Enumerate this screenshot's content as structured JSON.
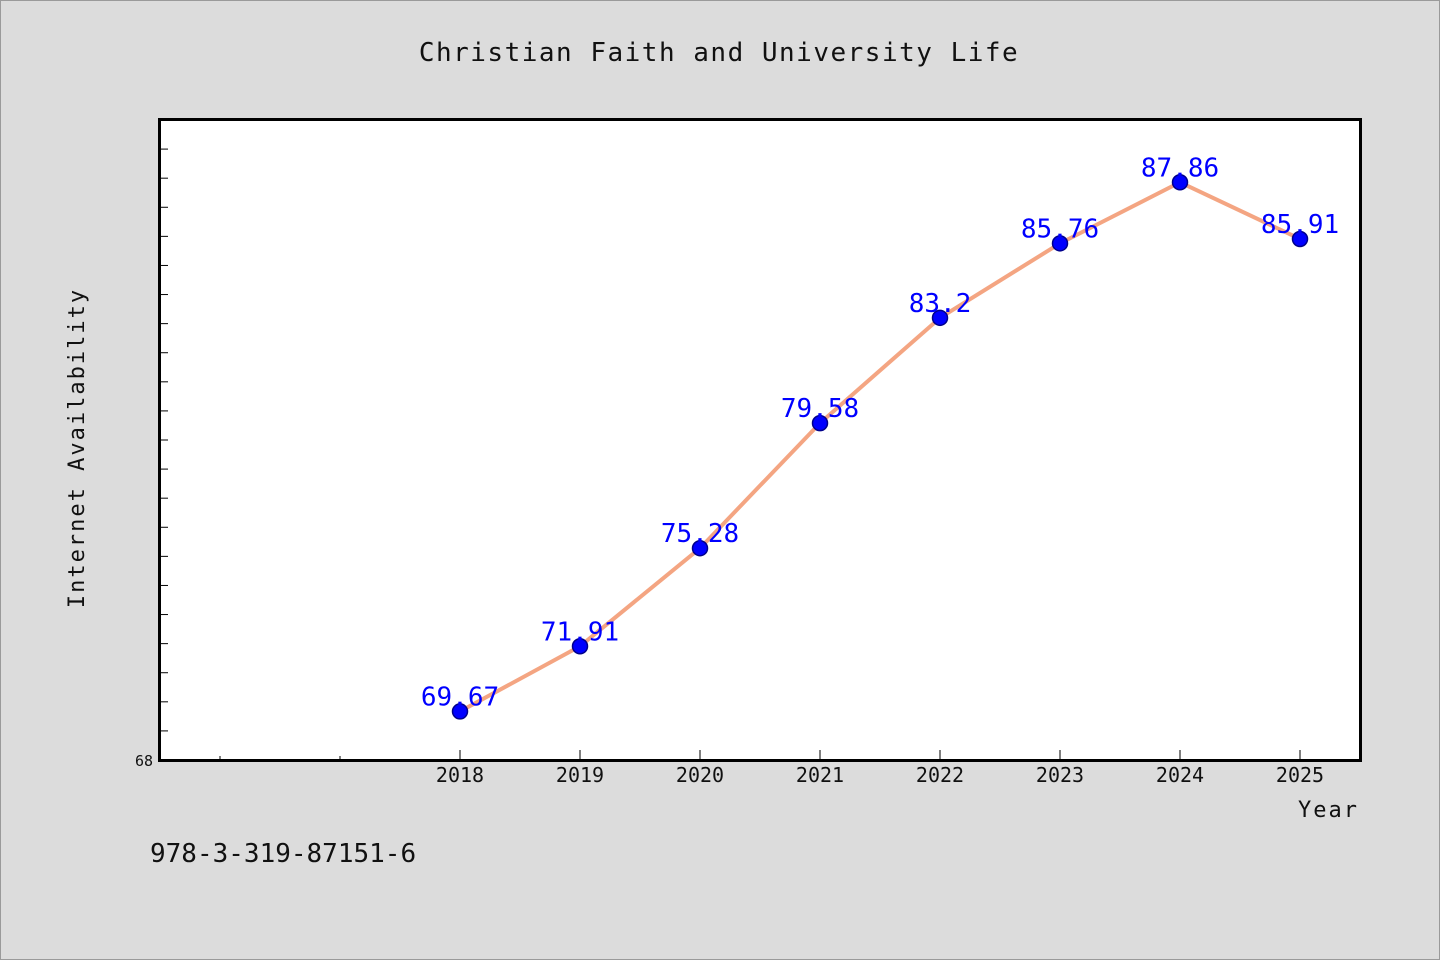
{
  "chart_data": {
    "type": "line",
    "title": "Christian Faith and University Life",
    "xlabel": "Year",
    "ylabel": "Internet Availability",
    "categories": [
      "2018",
      "2019",
      "2020",
      "2021",
      "2022",
      "2023",
      "2024",
      "2025"
    ],
    "values": [
      69.67,
      71.91,
      75.28,
      79.58,
      83.2,
      85.76,
      87.86,
      85.91
    ],
    "data_labels": [
      "69.67",
      "71.91",
      "75.28",
      "79.58",
      "83.2",
      "85.76",
      "87.86",
      "85.91"
    ],
    "y_tick_label": "68",
    "ylim": [
      68,
      90
    ],
    "grid": false,
    "colors": {
      "line": "#f4a582",
      "marker": "#0000ff",
      "marker_edge": "#00008b",
      "data_label": "#0000ff",
      "background": "#dcdcdc",
      "plot_background": "#ffffff"
    }
  },
  "footer": {
    "isbn": "978-3-319-87151-6"
  }
}
